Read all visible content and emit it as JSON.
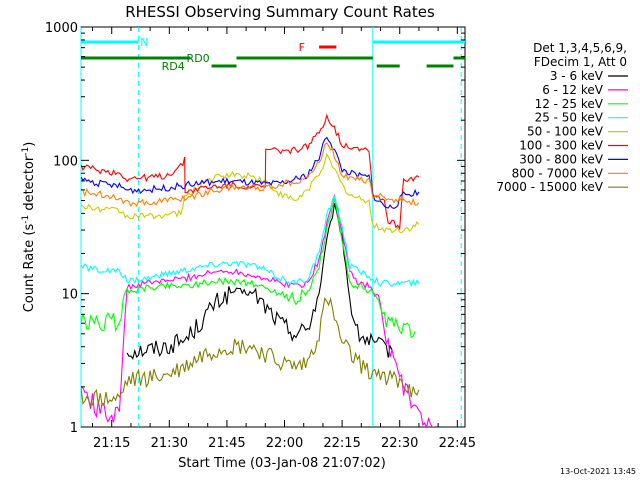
{
  "chart_data": {
    "type": "line",
    "title": "RHESSI Observing Summary Count Rates",
    "xlabel": "Start Time (03-Jan-08 21:07:02)",
    "ylabel_main": "Count Rate (s",
    "ylabel_sup1": "-1",
    "ylabel_mid": " detector",
    "ylabel_sup2": "-1",
    "ylabel_end": ")",
    "yscale": "log",
    "ylim": [
      1,
      1000
    ],
    "xlim_min": [
      0,
      100
    ],
    "x_unit": "minutes after 21:07:02",
    "x_ticks": [
      {
        "t": 8,
        "label": "21:15"
      },
      {
        "t": 23,
        "label": "21:30"
      },
      {
        "t": 38,
        "label": "21:45"
      },
      {
        "t": 53,
        "label": "22:00"
      },
      {
        "t": 68,
        "label": "22:15"
      },
      {
        "t": 83,
        "label": "22:30"
      },
      {
        "t": 98,
        "label": "22:45"
      }
    ],
    "y_ticks": [
      {
        "v": 1,
        "label": "1"
      },
      {
        "v": 10,
        "label": "10"
      },
      {
        "v": 100,
        "label": "100"
      },
      {
        "v": 1000,
        "label": "1000"
      }
    ],
    "legend_header": [
      "Det 1,3,4,5,6,9,",
      "FDecim 1, Att 0"
    ],
    "legend_position": "right",
    "vertical_lines": [
      {
        "t": 0,
        "color": "#00ffff",
        "style": "solid"
      },
      {
        "t": 15,
        "color": "#00ffff",
        "style": "dashed"
      },
      {
        "t": 76,
        "color": "#00ffff",
        "style": "solid"
      },
      {
        "t": 99,
        "color": "#00ffff",
        "style": "dashed"
      }
    ],
    "flag_bars": [
      {
        "name": "N",
        "color": "#00ffff",
        "row": 1,
        "segments": [
          [
            0,
            15
          ],
          [
            76,
            100
          ]
        ],
        "label_t": 16.5
      },
      {
        "name": "RD0",
        "color": "#008000",
        "row": 2,
        "segments": [
          [
            0,
            28.5
          ],
          [
            40.5,
            76
          ],
          [
            97,
            100
          ]
        ],
        "label_t": 30.5
      },
      {
        "name": "RD4",
        "color": "#008000",
        "row": 3,
        "segments": [
          [
            34,
            40.5
          ],
          [
            77,
            83
          ],
          [
            90,
            97
          ]
        ],
        "label_t": 24
      },
      {
        "name": "F",
        "color": "#ff0000",
        "row": 0,
        "segments": [
          [
            62,
            66.5
          ]
        ],
        "label_t": 57.5
      }
    ],
    "series": [
      {
        "name": "3 - 6 keV",
        "color": "#000000",
        "points": [
          [
            12,
            3.7
          ],
          [
            17,
            3.8
          ],
          [
            22,
            4.0
          ],
          [
            27,
            4.5
          ],
          [
            31,
            6.0
          ],
          [
            35,
            8.5
          ],
          [
            40,
            10.5
          ],
          [
            45,
            10.0
          ],
          [
            48,
            8.0
          ],
          [
            52,
            6.0
          ],
          [
            56,
            5.0
          ],
          [
            59,
            5.5
          ],
          [
            62,
            10
          ],
          [
            64,
            25
          ],
          [
            66,
            45
          ],
          [
            68,
            27
          ],
          [
            70,
            9
          ],
          [
            72,
            5
          ],
          [
            76,
            4.2
          ],
          [
            79,
            3.9
          ],
          [
            81,
            3.8
          ]
        ]
      },
      {
        "name": "6 - 12 keV",
        "color": "#ff00ff",
        "points": [
          [
            0,
            2.0
          ],
          [
            4,
            1.4
          ],
          [
            8,
            1.2
          ],
          [
            10,
            1.5
          ],
          [
            12,
            11
          ],
          [
            17,
            12
          ],
          [
            22,
            12.5
          ],
          [
            27,
            13
          ],
          [
            32,
            14
          ],
          [
            38,
            15
          ],
          [
            44,
            14
          ],
          [
            48,
            13
          ],
          [
            52,
            12
          ],
          [
            56,
            11.5
          ],
          [
            59,
            12
          ],
          [
            62,
            18
          ],
          [
            64,
            33
          ],
          [
            66,
            55
          ],
          [
            68,
            30
          ],
          [
            70,
            15
          ],
          [
            72,
            12
          ],
          [
            75,
            11.5
          ],
          [
            76,
            10.5
          ],
          [
            78,
            8
          ],
          [
            79,
            5
          ],
          [
            84,
            2.0
          ],
          [
            88,
            1.2
          ],
          [
            92,
            1.0
          ]
        ]
      },
      {
        "name": "12 - 25 keV",
        "color": "#00ff00",
        "points": [
          [
            0,
            6.0
          ],
          [
            5,
            6.0
          ],
          [
            10,
            6.2
          ],
          [
            12,
            10.5
          ],
          [
            17,
            11
          ],
          [
            22,
            11.5
          ],
          [
            27,
            11.5
          ],
          [
            32,
            12
          ],
          [
            38,
            12.5
          ],
          [
            44,
            12
          ],
          [
            48,
            11
          ],
          [
            52,
            10
          ],
          [
            56,
            9.5
          ],
          [
            59,
            10
          ],
          [
            62,
            16
          ],
          [
            64,
            30
          ],
          [
            66,
            50
          ],
          [
            68,
            25
          ],
          [
            70,
            12
          ],
          [
            74,
            11
          ],
          [
            76,
            10
          ],
          [
            78,
            7
          ],
          [
            82,
            5.5
          ],
          [
            87,
            5.2
          ]
        ]
      },
      {
        "name": "25 - 50 keV",
        "color": "#00ffff",
        "points": [
          [
            0,
            16
          ],
          [
            5,
            15
          ],
          [
            10,
            14.5
          ],
          [
            12,
            12.5
          ],
          [
            17,
            13
          ],
          [
            22,
            14
          ],
          [
            27,
            15
          ],
          [
            32,
            16
          ],
          [
            38,
            17
          ],
          [
            44,
            16.5
          ],
          [
            48,
            15
          ],
          [
            52,
            13
          ],
          [
            56,
            12
          ],
          [
            59,
            13
          ],
          [
            62,
            20
          ],
          [
            64,
            38
          ],
          [
            66,
            55
          ],
          [
            68,
            32
          ],
          [
            70,
            16
          ],
          [
            74,
            14
          ],
          [
            76,
            13
          ],
          [
            78,
            12
          ],
          [
            82,
            12
          ],
          [
            88,
            12
          ]
        ]
      },
      {
        "name": "50 - 100 keV",
        "color": "#cccc00",
        "points": [
          [
            0,
            45
          ],
          [
            5,
            43
          ],
          [
            10,
            42
          ],
          [
            12,
            38
          ],
          [
            17,
            38
          ],
          [
            22,
            39
          ],
          [
            26,
            40
          ],
          [
            27,
            52
          ],
          [
            32,
            70
          ],
          [
            38,
            78
          ],
          [
            44,
            77
          ],
          [
            48,
            70
          ],
          [
            52,
            55
          ],
          [
            56,
            50
          ],
          [
            59,
            60
          ],
          [
            62,
            80
          ],
          [
            64,
            105
          ],
          [
            66,
            85
          ],
          [
            68,
            65
          ],
          [
            70,
            55
          ],
          [
            72,
            52
          ],
          [
            75,
            50
          ],
          [
            76,
            32
          ],
          [
            80,
            30
          ],
          [
            84,
            30
          ],
          [
            88,
            33
          ]
        ]
      },
      {
        "name": "100 - 300 keV",
        "color": "#ff0000",
        "points": [
          [
            0,
            90
          ],
          [
            5,
            84
          ],
          [
            10,
            80
          ],
          [
            12,
            73
          ],
          [
            17,
            74
          ],
          [
            22,
            76
          ],
          [
            26,
            90
          ],
          [
            27,
            100
          ],
          [
            27.1,
            58
          ],
          [
            32,
            62
          ],
          [
            38,
            65
          ],
          [
            44,
            64
          ],
          [
            48,
            62
          ],
          [
            48.1,
            120
          ],
          [
            52,
            118
          ],
          [
            56,
            120
          ],
          [
            59,
            128
          ],
          [
            62,
            160
          ],
          [
            64,
            215
          ],
          [
            66,
            175
          ],
          [
            68,
            130
          ],
          [
            72,
            125
          ],
          [
            75,
            120
          ],
          [
            76,
            56
          ],
          [
            78,
            52
          ],
          [
            79,
            50
          ],
          [
            80,
            35
          ],
          [
            83,
            32
          ],
          [
            84,
            72
          ],
          [
            88,
            75
          ]
        ]
      },
      {
        "name": "300 - 800 keV",
        "color": "#0000ff",
        "points": [
          [
            0,
            72
          ],
          [
            5,
            67
          ],
          [
            10,
            64
          ],
          [
            12,
            60
          ],
          [
            17,
            60
          ],
          [
            22,
            62
          ],
          [
            27,
            65
          ],
          [
            32,
            68
          ],
          [
            38,
            70
          ],
          [
            44,
            68
          ],
          [
            48,
            66
          ],
          [
            52,
            67
          ],
          [
            56,
            72
          ],
          [
            59,
            78
          ],
          [
            62,
            105
          ],
          [
            64,
            155
          ],
          [
            66,
            120
          ],
          [
            68,
            85
          ],
          [
            72,
            77
          ],
          [
            75,
            75
          ],
          [
            76,
            55
          ],
          [
            78,
            48
          ],
          [
            80,
            44
          ],
          [
            82,
            46
          ],
          [
            84,
            55
          ],
          [
            88,
            58
          ]
        ]
      },
      {
        "name": "800 - 7000 keV",
        "color": "#ff8000",
        "points": [
          [
            0,
            58
          ],
          [
            5,
            56
          ],
          [
            10,
            53
          ],
          [
            12,
            48
          ],
          [
            17,
            48
          ],
          [
            22,
            50
          ],
          [
            27,
            52
          ],
          [
            32,
            57
          ],
          [
            38,
            62
          ],
          [
            44,
            63
          ],
          [
            48,
            62
          ],
          [
            52,
            66
          ],
          [
            56,
            70
          ],
          [
            59,
            75
          ],
          [
            62,
            95
          ],
          [
            64,
            140
          ],
          [
            66,
            110
          ],
          [
            68,
            78
          ],
          [
            72,
            72
          ],
          [
            75,
            70
          ],
          [
            76,
            55
          ],
          [
            80,
            52
          ],
          [
            84,
            50
          ],
          [
            88,
            48
          ]
        ]
      },
      {
        "name": "7000 - 15000 keV",
        "color": "#808000",
        "points": [
          [
            0,
            1.7
          ],
          [
            5,
            1.6
          ],
          [
            10,
            1.6
          ],
          [
            12,
            2.2
          ],
          [
            17,
            2.3
          ],
          [
            22,
            2.4
          ],
          [
            27,
            2.8
          ],
          [
            32,
            3.5
          ],
          [
            38,
            4.0
          ],
          [
            44,
            4.0
          ],
          [
            48,
            3.5
          ],
          [
            52,
            3.0
          ],
          [
            56,
            2.8
          ],
          [
            59,
            3.0
          ],
          [
            62,
            5.0
          ],
          [
            64,
            9.5
          ],
          [
            66,
            6.5
          ],
          [
            68,
            4.2
          ],
          [
            72,
            3.0
          ],
          [
            76,
            2.6
          ],
          [
            80,
            2.4
          ],
          [
            84,
            2.0
          ],
          [
            88,
            1.9
          ]
        ]
      }
    ]
  },
  "footer": {
    "date_stamp": "13-Oct-2021 13:45"
  }
}
